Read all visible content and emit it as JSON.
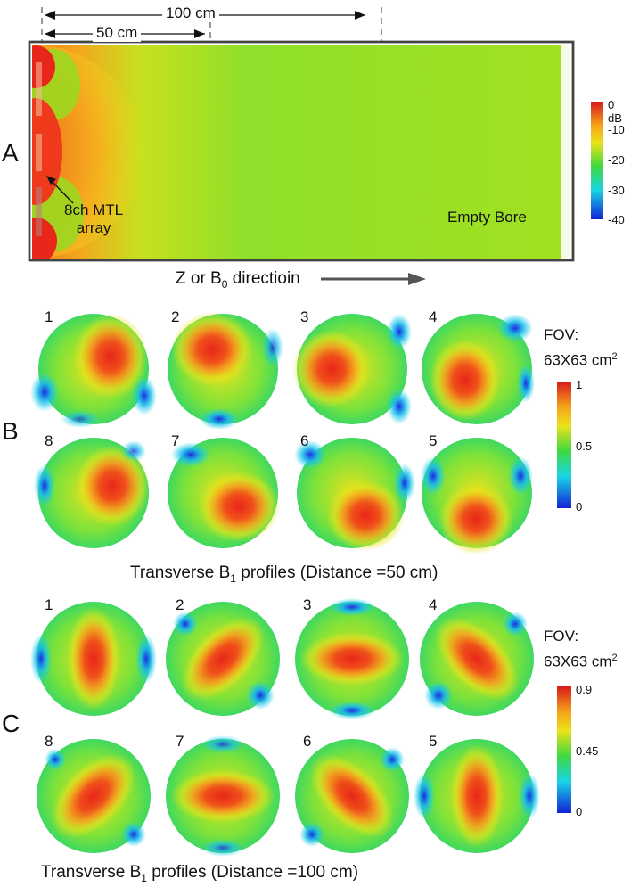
{
  "panels": {
    "A": {
      "letter": "A",
      "dim_100": "100 cm",
      "dim_50": "50 cm",
      "array_label_line1": "8ch MTL",
      "array_label_line2": "array",
      "empty_bore": "Empty Bore",
      "axis_text": "Z or B",
      "axis_sub": "0",
      "axis_suffix": " directioin",
      "colorbar_ticks": [
        "0 dB",
        "-10",
        "-20",
        "-30",
        "-40"
      ]
    },
    "B": {
      "letter": "B",
      "fov_line1": "FOV:",
      "fov_line2": "63X63 cm",
      "fov_sup": "2",
      "colorbar_ticks": [
        "1",
        "0.5",
        "0"
      ],
      "numbers_top": [
        "1",
        "2",
        "3",
        "4"
      ],
      "numbers_bottom": [
        "8",
        "7",
        "6",
        "5"
      ],
      "caption_pre": "Transverse B",
      "caption_sub": "1",
      "caption_post": " profiles (Distance =50 cm)"
    },
    "C": {
      "letter": "C",
      "fov_line1": "FOV:",
      "fov_line2": "63X63 cm",
      "fov_sup": "2",
      "colorbar_ticks": [
        "0.9",
        "0.45",
        "0"
      ],
      "numbers_top": [
        "1",
        "2",
        "3",
        "4"
      ],
      "numbers_bottom": [
        "8",
        "7",
        "6",
        "5"
      ],
      "caption_pre": "Transverse B",
      "caption_sub": "1",
      "caption_post": " profiles (Distance =100 cm)"
    }
  },
  "colors": {
    "red": "#e8261a",
    "orange": "#f79a1e",
    "yellow": "#e8e21c",
    "green": "#3ee03a",
    "lime": "#9be02a",
    "cyan": "#18d8e8",
    "blue": "#1a3ee0",
    "navy": "#0a14c8"
  }
}
